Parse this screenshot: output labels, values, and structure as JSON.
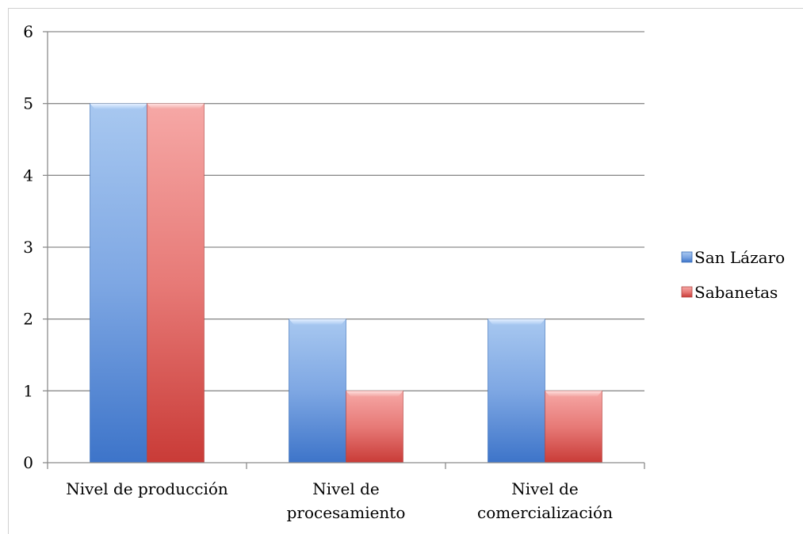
{
  "chart_data": {
    "type": "bar",
    "title": "",
    "xlabel": "",
    "ylabel": "",
    "ylim": [
      0,
      6
    ],
    "yticks": [
      0,
      1,
      2,
      3,
      4,
      5,
      6
    ],
    "grid": true,
    "legend_position": "right",
    "categories": [
      [
        "Nivel de producción"
      ],
      [
        "Nivel de",
        "procesamiento"
      ],
      [
        "Nivel de",
        "comercialización"
      ]
    ],
    "series": [
      {
        "name": "San Lázaro",
        "values": [
          5,
          2,
          2
        ],
        "color": "#4f81bd"
      },
      {
        "name": "Sabanetas",
        "values": [
          5,
          1,
          1
        ],
        "color": "#c0504d"
      }
    ]
  }
}
